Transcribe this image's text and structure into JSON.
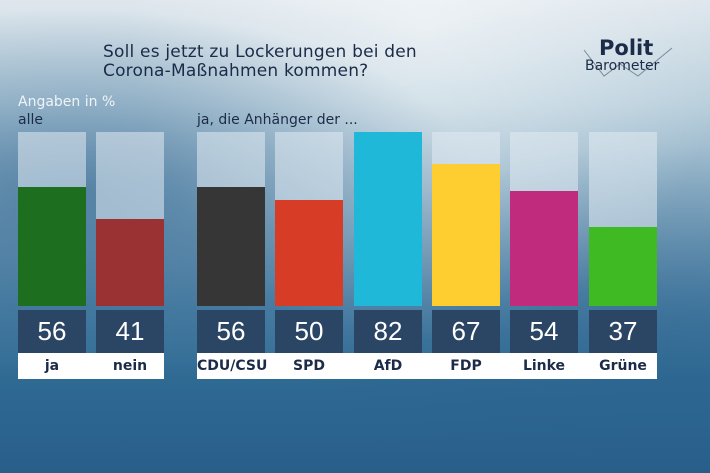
{
  "title_line1": "Soll es jetzt zu Lockerungen bei den",
  "title_line2": "Corona-Maßnahmen kommen?",
  "logo": {
    "line1": "Polit",
    "line2": "Barometer"
  },
  "unit_label": "Angaben in %",
  "group_all_label": "alle",
  "group_parties_label": "ja, die Anhänger der  ...",
  "chart_data": {
    "type": "bar",
    "title": "Soll es jetzt zu Lockerungen bei den Corona-Maßnahmen kommen?",
    "ylabel": "Angaben in %",
    "ylim": [
      0,
      82
    ],
    "grid": false,
    "legend": "none",
    "groups": [
      {
        "label": "alle",
        "categories": [
          "ja",
          "nein"
        ],
        "values": [
          56,
          41
        ],
        "colors": [
          "#1e6e1f",
          "#9a3234"
        ]
      },
      {
        "label": "ja, die Anhänger der  ...",
        "categories": [
          "CDU/CSU",
          "SPD",
          "AfD",
          "FDP",
          "Linke",
          "Grüne"
        ],
        "values": [
          56,
          50,
          82,
          67,
          54,
          37
        ],
        "colors": [
          "#363636",
          "#d63c26",
          "#1fb8d8",
          "#fecd2f",
          "#c02b7e",
          "#3fba22"
        ]
      }
    ]
  }
}
